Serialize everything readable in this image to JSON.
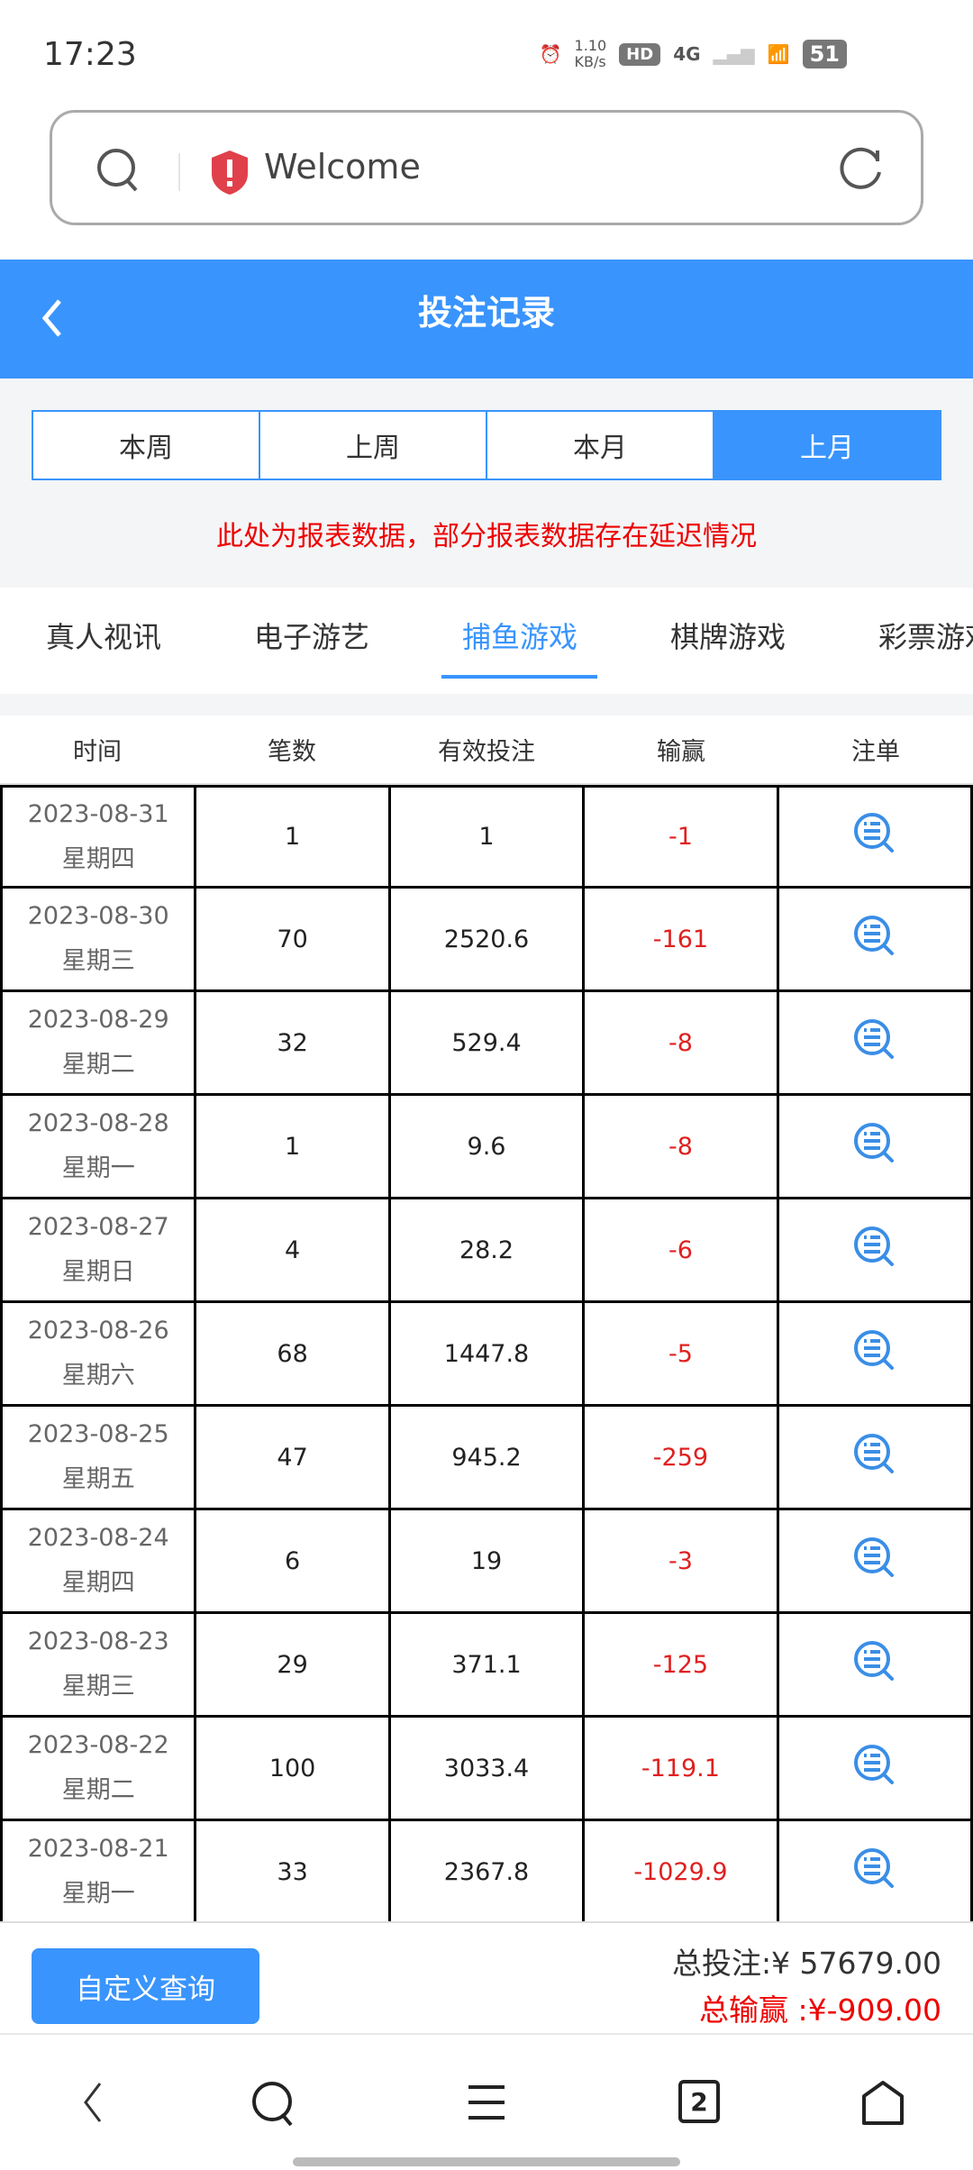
{
  "status_bar": {
    "time": "17:23",
    "net_speed": "1.10",
    "net_unit": "KB/s",
    "hd": "HD",
    "network": "4G",
    "battery": "51"
  },
  "url_bar": {
    "text": "Welcome"
  },
  "header": {
    "title": "投注记录"
  },
  "periods": [
    {
      "label": "本周"
    },
    {
      "label": "上周"
    },
    {
      "label": "本月"
    },
    {
      "label": "上月",
      "active": true
    }
  ],
  "notice": "此处为报表数据，部分报表数据存在延迟情况",
  "categories": [
    {
      "label": "真人视讯"
    },
    {
      "label": "电子游艺"
    },
    {
      "label": "捕鱼游戏",
      "active": true
    },
    {
      "label": "棋牌游戏"
    },
    {
      "label": "彩票游戏"
    }
  ],
  "table": {
    "headers": [
      "时间",
      "笔数",
      "有效投注",
      "输赢",
      "注单"
    ],
    "rows": [
      {
        "date": "2023-08-31",
        "weekday": "星期四",
        "count": "1",
        "bet": "1",
        "win": "-1"
      },
      {
        "date": "2023-08-30",
        "weekday": "星期三",
        "count": "70",
        "bet": "2520.6",
        "win": "-161"
      },
      {
        "date": "2023-08-29",
        "weekday": "星期二",
        "count": "32",
        "bet": "529.4",
        "win": "-8"
      },
      {
        "date": "2023-08-28",
        "weekday": "星期一",
        "count": "1",
        "bet": "9.6",
        "win": "-8"
      },
      {
        "date": "2023-08-27",
        "weekday": "星期日",
        "count": "4",
        "bet": "28.2",
        "win": "-6"
      },
      {
        "date": "2023-08-26",
        "weekday": "星期六",
        "count": "68",
        "bet": "1447.8",
        "win": "-5"
      },
      {
        "date": "2023-08-25",
        "weekday": "星期五",
        "count": "47",
        "bet": "945.2",
        "win": "-259"
      },
      {
        "date": "2023-08-24",
        "weekday": "星期四",
        "count": "6",
        "bet": "19",
        "win": "-3"
      },
      {
        "date": "2023-08-23",
        "weekday": "星期三",
        "count": "29",
        "bet": "371.1",
        "win": "-125"
      },
      {
        "date": "2023-08-22",
        "weekday": "星期二",
        "count": "100",
        "bet": "3033.4",
        "win": "-119.1"
      },
      {
        "date": "2023-08-21",
        "weekday": "星期一",
        "count": "33",
        "bet": "2367.8",
        "win": "-1029.9"
      }
    ]
  },
  "footer": {
    "custom_query": "自定义查询",
    "total_bet": "总投注:¥ 57679.00",
    "total_win": "总输赢 :¥-909.00"
  },
  "nav": {
    "tab_count": "2"
  },
  "colors": {
    "accent": "#3994fd",
    "negative": "#e02020"
  }
}
